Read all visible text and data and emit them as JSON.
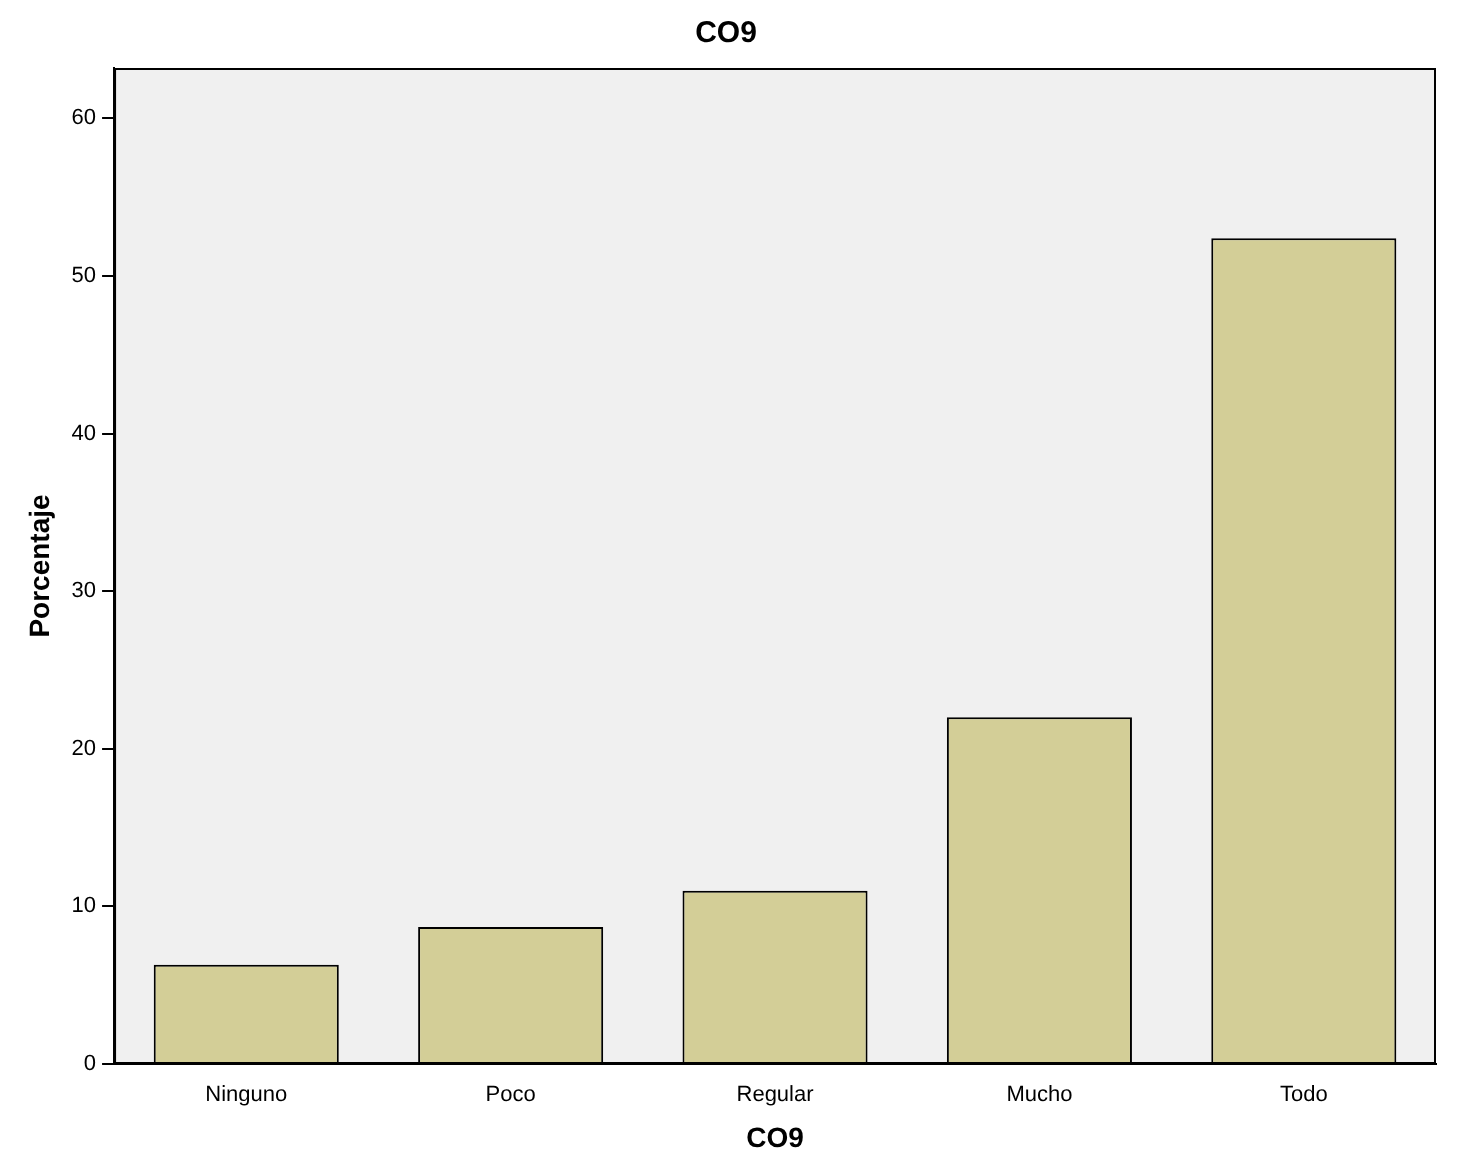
{
  "chart_data": {
    "type": "bar",
    "title": "CO9",
    "xlabel": "CO9",
    "ylabel": "Porcentaje",
    "categories": [
      "Ninguno",
      "Poco",
      "Regular",
      "Mucho",
      "Todo"
    ],
    "values": [
      6.3,
      8.7,
      11.0,
      22.0,
      52.4
    ],
    "color": "#d3ce97",
    "ylim": [
      0,
      63.2
    ],
    "yticks": [
      0,
      10,
      20,
      30,
      40,
      50,
      60
    ],
    "grid": false,
    "legend": false
  }
}
